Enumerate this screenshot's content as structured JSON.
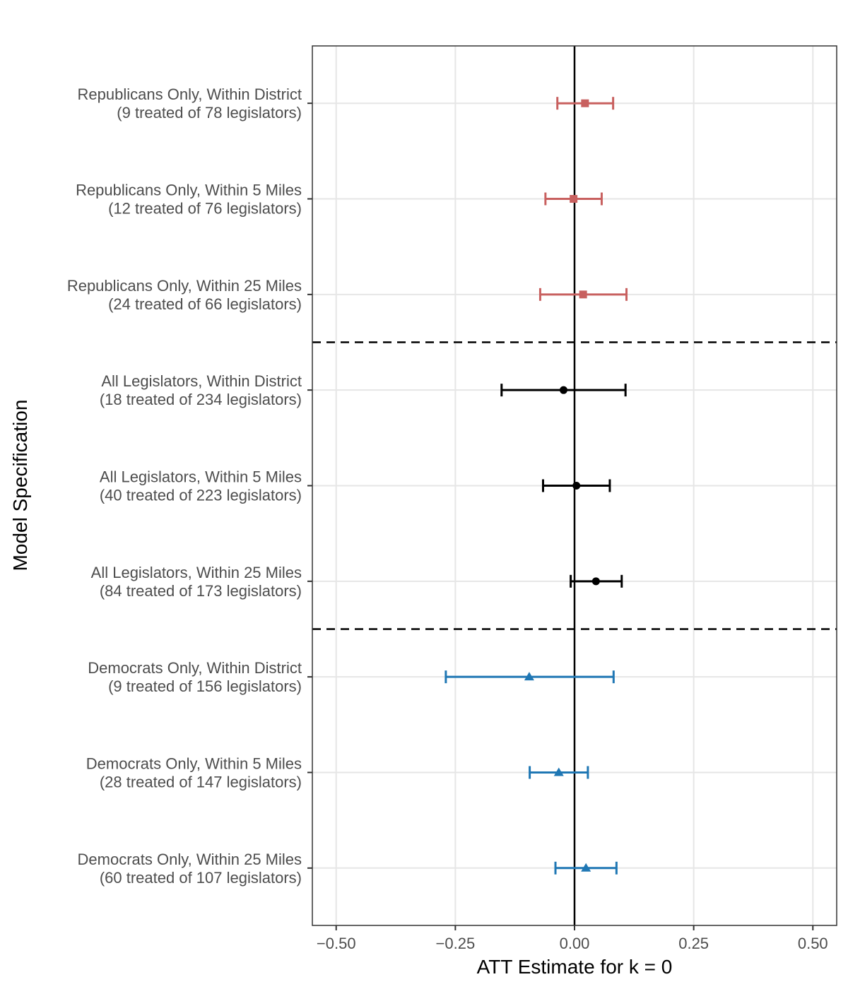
{
  "chart_data": {
    "type": "forest",
    "title": "",
    "xlabel": "ATT Estimate for k = 0",
    "ylabel": "Model Specification",
    "xlim": [
      -0.55,
      0.55
    ],
    "x_ticks": [
      -0.5,
      -0.25,
      0.0,
      0.25,
      0.5
    ],
    "x_tick_labels": [
      "−0.50",
      "−0.25",
      "0.00",
      "0.25",
      "0.50"
    ],
    "reference_line": 0,
    "grid": true,
    "series": [
      {
        "name": "Republicans",
        "color": "#c8605f",
        "marker": "square",
        "rows": [
          {
            "label_line1": "Republicans Only, Within District",
            "label_line2": "(9 treated of 78 legislators)",
            "estimate": 0.022,
            "lower": -0.036,
            "upper": 0.081
          },
          {
            "label_line1": "Republicans Only, Within 5 Miles",
            "label_line2": "(12 treated of 76 legislators)",
            "estimate": -0.002,
            "lower": -0.061,
            "upper": 0.057
          },
          {
            "label_line1": "Republicans Only, Within 25 Miles",
            "label_line2": "(24 treated of 66 legislators)",
            "estimate": 0.018,
            "lower": -0.072,
            "upper": 0.109
          }
        ]
      },
      {
        "name": "All Legislators",
        "color": "#000000",
        "marker": "circle",
        "rows": [
          {
            "label_line1": "All Legislators, Within District",
            "label_line2": "(18 treated of 234 legislators)",
            "estimate": -0.023,
            "lower": -0.153,
            "upper": 0.107
          },
          {
            "label_line1": "All Legislators, Within 5 Miles",
            "label_line2": "(40 treated of 223 legislators)",
            "estimate": 0.004,
            "lower": -0.066,
            "upper": 0.074
          },
          {
            "label_line1": "All Legislators, Within 25 Miles",
            "label_line2": "(84 treated of 173 legislators)",
            "estimate": 0.045,
            "lower": -0.008,
            "upper": 0.099
          }
        ]
      },
      {
        "name": "Democrats",
        "color": "#1f77b4",
        "marker": "triangle",
        "rows": [
          {
            "label_line1": "Democrats Only, Within District",
            "label_line2": "(9 treated of 156 legislators)",
            "estimate": -0.095,
            "lower": -0.27,
            "upper": 0.082
          },
          {
            "label_line1": "Democrats Only, Within 5 Miles",
            "label_line2": "(28 treated of 147 legislators)",
            "estimate": -0.033,
            "lower": -0.094,
            "upper": 0.028
          },
          {
            "label_line1": "Democrats Only, Within 25 Miles",
            "label_line2": "(60 treated of 107 legislators)",
            "estimate": 0.024,
            "lower": -0.04,
            "upper": 0.088
          }
        ]
      }
    ]
  }
}
